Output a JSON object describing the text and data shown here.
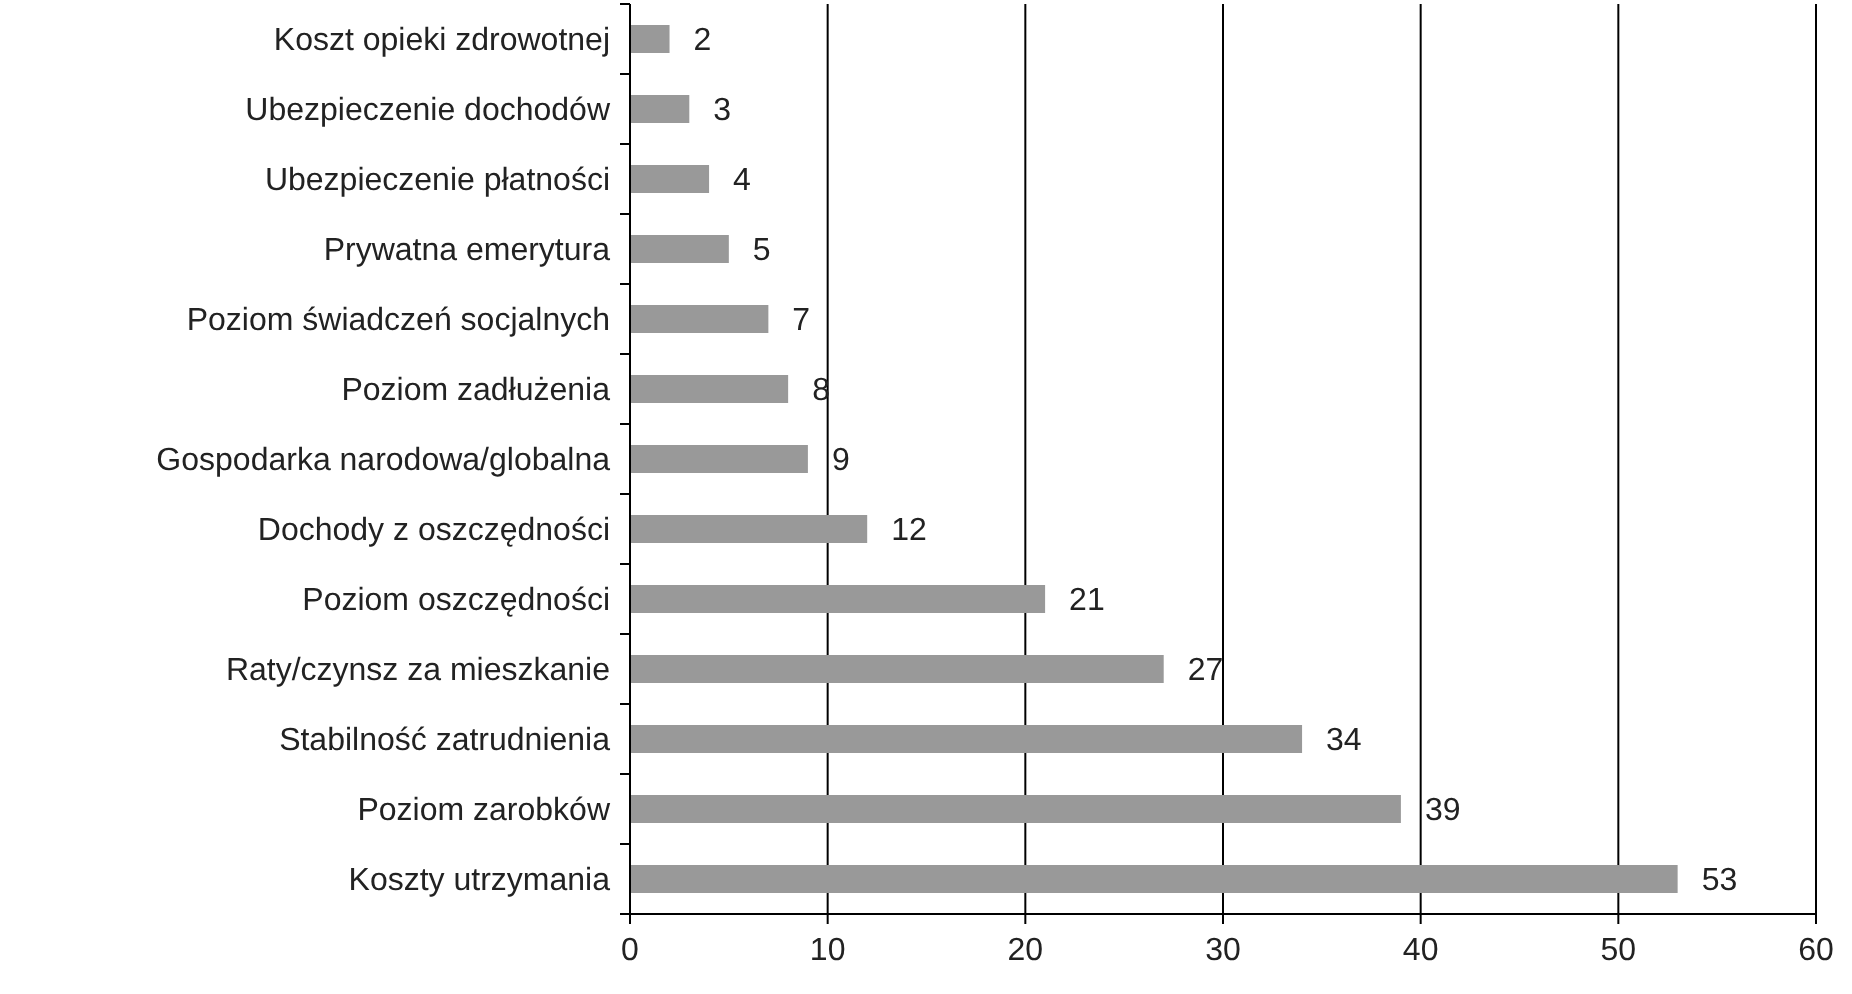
{
  "chart_data": {
    "type": "bar",
    "orientation": "horizontal",
    "categories": [
      "Koszt opieki zdrowotnej",
      "Ubezpieczenie dochodów",
      "Ubezpieczenie płatności",
      "Prywatna emerytura",
      "Poziom świadczeń socjalnych",
      "Poziom zadłużenia",
      "Gospodarka narodowa/globalna",
      "Dochody z oszczędności",
      "Poziom oszczędności",
      "Raty/czynsz za mieszkanie",
      "Stabilność zatrudnienia",
      "Poziom zarobków",
      "Koszty utrzymania"
    ],
    "values": [
      2,
      3,
      4,
      5,
      7,
      8,
      9,
      12,
      21,
      27,
      34,
      39,
      53
    ],
    "color": "#999999",
    "xlim": [
      0,
      60
    ],
    "xticks": [
      0,
      10,
      20,
      30,
      40,
      50,
      60
    ],
    "grid": "x",
    "data_labels": true
  }
}
